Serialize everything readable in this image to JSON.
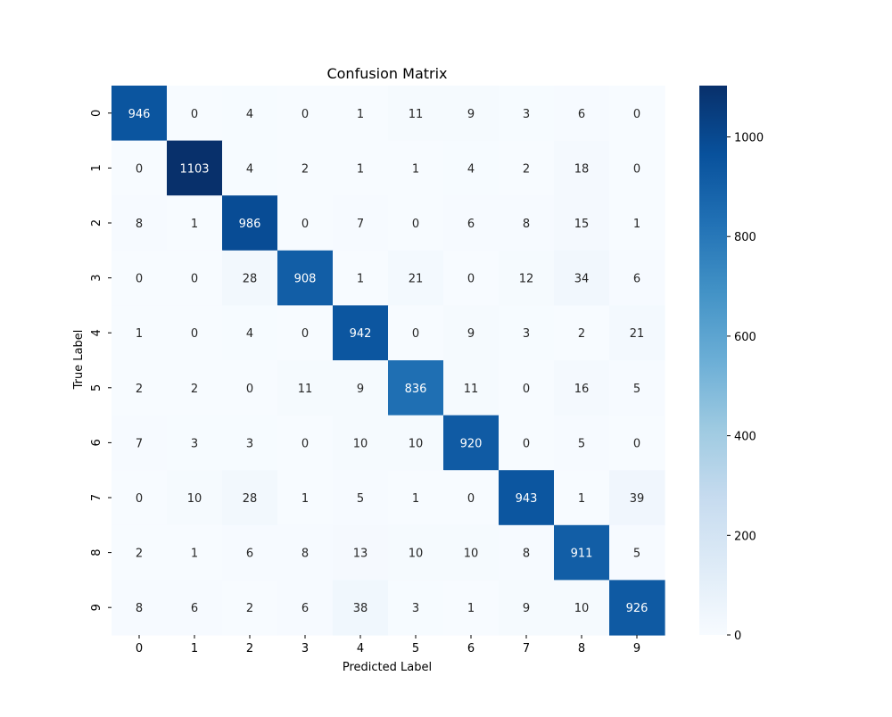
{
  "chart_data": {
    "type": "heatmap",
    "title": "Confusion Matrix",
    "xlabel": "Predicted Label",
    "ylabel": "True Label",
    "x_categories": [
      "0",
      "1",
      "2",
      "3",
      "4",
      "5",
      "6",
      "7",
      "8",
      "9"
    ],
    "y_categories": [
      "0",
      "1",
      "2",
      "3",
      "4",
      "5",
      "6",
      "7",
      "8",
      "9"
    ],
    "values": [
      [
        946,
        0,
        4,
        0,
        1,
        11,
        9,
        3,
        6,
        0
      ],
      [
        0,
        1103,
        4,
        2,
        1,
        1,
        4,
        2,
        18,
        0
      ],
      [
        8,
        1,
        986,
        0,
        7,
        0,
        6,
        8,
        15,
        1
      ],
      [
        0,
        0,
        28,
        908,
        1,
        21,
        0,
        12,
        34,
        6
      ],
      [
        1,
        0,
        4,
        0,
        942,
        0,
        9,
        3,
        2,
        21
      ],
      [
        2,
        2,
        0,
        11,
        9,
        836,
        11,
        0,
        16,
        5
      ],
      [
        7,
        3,
        3,
        0,
        10,
        10,
        920,
        0,
        5,
        0
      ],
      [
        0,
        10,
        28,
        1,
        5,
        1,
        0,
        943,
        1,
        39
      ],
      [
        2,
        1,
        6,
        8,
        13,
        10,
        10,
        8,
        911,
        5
      ],
      [
        8,
        6,
        2,
        6,
        38,
        3,
        1,
        9,
        10,
        926
      ]
    ],
    "colormap": "Blues",
    "colorbar": {
      "range": [
        0,
        1103
      ],
      "ticks": [
        0,
        200,
        400,
        600,
        800,
        1000
      ]
    },
    "annotation_colors": {
      "dark_cell_text": "#ffffff",
      "light_cell_text": "#262626"
    }
  }
}
